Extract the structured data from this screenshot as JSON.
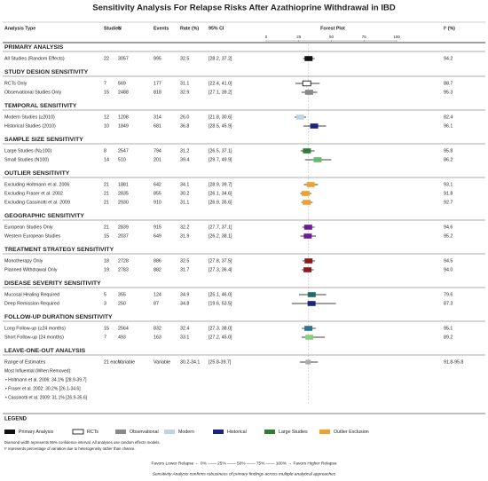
{
  "chart_data": {
    "type": "forest",
    "title": "Sensitivity Analysis For Relapse Risks After Azathioprine Withdrawal in IBD",
    "columns": [
      "Analysis Type",
      "Studies",
      "N",
      "Events",
      "Rate (%)",
      "95% CI",
      "Forest Plot",
      "I² (%)"
    ],
    "xlim": [
      0,
      100
    ],
    "xticks": [
      0,
      25,
      50,
      75,
      100
    ],
    "sections": [
      {
        "title": "PRIMARY ANALYSIS",
        "rows": [
          {
            "label": "All Studies (Random Effects)",
            "studies": 22,
            "n": 3057,
            "events": 995,
            "rate": 32.5,
            "ci_label": "[28.2, 37.2]",
            "ci": [
              28.2,
              37.2
            ],
            "i2": 94.2,
            "color": "#111111"
          }
        ]
      },
      {
        "title": "STUDY DESIGN SENSITIVITY",
        "rows": [
          {
            "label": "RCTs Only",
            "studies": 7,
            "n": 569,
            "events": 177,
            "rate": 31.1,
            "ci_label": "[22.4, 41.0]",
            "ci": [
              22.4,
              41.0
            ],
            "i2": 88.7,
            "color": "#ffffff"
          },
          {
            "label": "Observational Studies Only",
            "studies": 15,
            "n": 2488,
            "events": 818,
            "rate": 32.9,
            "ci_label": "[27.1, 39.2]",
            "ci": [
              27.1,
              39.2
            ],
            "i2": 95.3,
            "color": "#888888"
          }
        ]
      },
      {
        "title": "TEMPORAL SENSITIVITY",
        "rows": [
          {
            "label": "Modern Studies (≥2010)",
            "studies": 12,
            "n": 1208,
            "events": 314,
            "rate": 26.0,
            "rate_label": "26.0",
            "ci_label": "[21.8, 30.6]",
            "ci": [
              21.8,
              30.6
            ],
            "i2": 82.4,
            "color": "#bcd4e6"
          },
          {
            "label": "Historical Studies (2010)",
            "studies": 10,
            "n": 1849,
            "events": 681,
            "rate": 36.8,
            "ci_label": "[28.5, 45.9]",
            "ci": [
              28.5,
              45.9
            ],
            "i2": 96.1,
            "color": "#1a237e"
          }
        ]
      },
      {
        "title": "SAMPLE SIZE SENSITIVITY",
        "rows": [
          {
            "label": "Large Studies (N≥100)",
            "studies": 8,
            "n": 2547,
            "events": 794,
            "rate": 31.2,
            "ci_label": "[26.5, 37.1]",
            "ci": [
              26.5,
              37.1
            ],
            "i2": 95.8,
            "color": "#2e7d32"
          },
          {
            "label": "Small Studies (N100)",
            "studies": 14,
            "n": 510,
            "events": 201,
            "rate": 39.4,
            "ci_label": "[29.7, 49.9]",
            "ci": [
              29.7,
              49.9
            ],
            "i2": 86.2,
            "color": "#66bb6a"
          }
        ]
      },
      {
        "title": "OUTLIER SENSITIVITY",
        "rows": [
          {
            "label": "Excluding Holtmann et al. 2006",
            "studies": 21,
            "n": 1881,
            "events": 642,
            "rate": 34.1,
            "ci_label": "[28.9, 39.7]",
            "ci": [
              28.9,
              39.7
            ],
            "i2": 93.1,
            "color": "#f0a030"
          },
          {
            "label": "Excluding Fraser et al. 2002",
            "studies": 21,
            "n": 2835,
            "events": 855,
            "rate": 30.2,
            "ci_label": "[26.1, 34.6]",
            "ci": [
              26.1,
              34.6
            ],
            "i2": 91.8,
            "color": "#f0a030"
          },
          {
            "label": "Excluding Cassinotti et al. 2009",
            "studies": 21,
            "n": 2930,
            "events": 910,
            "rate": 31.1,
            "ci_label": "[26.9, 35.6]",
            "ci": [
              26.9,
              35.6
            ],
            "i2": 92.7,
            "color": "#f0a030"
          }
        ]
      },
      {
        "title": "GEOGRAPHIC SENSITIVITY",
        "rows": [
          {
            "label": "European Studies Only",
            "studies": 21,
            "n": 2839,
            "events": 915,
            "rate": 32.2,
            "ci_label": "[27.7, 37.1]",
            "ci": [
              27.7,
              37.1
            ],
            "i2": 94.6,
            "color": "#6a1b9a"
          },
          {
            "label": "Western European Studies",
            "studies": 15,
            "n": 2037,
            "events": 649,
            "rate": 31.9,
            "ci_label": "[26.2, 38.1]",
            "ci": [
              26.2,
              38.1
            ],
            "i2": 95.2,
            "color": "#6a1b9a"
          }
        ]
      },
      {
        "title": "TREATMENT STRATEGY SENSITIVITY",
        "rows": [
          {
            "label": "Monotherapy Only",
            "studies": 18,
            "n": 2728,
            "events": 886,
            "rate": 32.5,
            "ci_label": "[27.8, 37.5]",
            "ci": [
              27.8,
              37.5
            ],
            "i2": 94.5,
            "color": "#8b1a1a"
          },
          {
            "label": "Planned Withdrawal Only",
            "studies": 19,
            "n": 2783,
            "events": 882,
            "rate": 31.7,
            "ci_label": "[27.3, 36.4]",
            "ci": [
              27.3,
              36.4
            ],
            "i2": 94.0,
            "i2_label": "94.0",
            "color": "#8b1a1a"
          }
        ]
      },
      {
        "title": "DISEASE SEVERITY SENSITIVITY",
        "rows": [
          {
            "label": "Mucosal Healing Required",
            "studies": 5,
            "n": 355,
            "events": 124,
            "rate": 34.9,
            "ci_label": "[25.1, 46.0]",
            "ci": [
              25.1,
              46.0
            ],
            "i2": 79.6,
            "color": "#1a6b6b"
          },
          {
            "label": "Deep Remission Required",
            "studies": 3,
            "n": 250,
            "events": 87,
            "rate": 34.8,
            "ci_label": "[19.6, 53.5]",
            "ci": [
              19.6,
              53.5
            ],
            "i2": 87.3,
            "color": "#1a237e"
          }
        ]
      },
      {
        "title": "FOLLOW-UP DURATION SENSITIVITY",
        "rows": [
          {
            "label": "Long Follow-up (≥24 months)",
            "studies": 15,
            "n": 2564,
            "events": 832,
            "rate": 32.4,
            "ci_label": "[27.3, 38.0]",
            "ci": [
              27.3,
              38.0
            ],
            "i2": 95.1,
            "color": "#2f6f8f"
          },
          {
            "label": "Short Follow-up (24 months)",
            "studies": 7,
            "n": 493,
            "events": 163,
            "rate": 33.1,
            "ci_label": "[27.2, 45.0]",
            "ci": [
              27.2,
              45.0
            ],
            "i2": 89.2,
            "color": "#8bd17c"
          }
        ]
      },
      {
        "title": "LEAVE-ONE-OUT ANALYSIS",
        "rows": [
          {
            "label": "Range of Estimates",
            "studies": "21 each",
            "n": "Variable",
            "events": "Variable",
            "rate_label": "30.2-34.1",
            "estimate_range": [
              30.2,
              34.1
            ],
            "ci_label": "[25.8-39.7]",
            "ci": [
              25.8,
              39.7
            ],
            "i2_label": "91.8-95.8",
            "color": "#aaaaaa"
          }
        ],
        "notes": [
          "Most Influential (When Removed):",
          "• Holtmann et al. 2006: 34.1% [28.9-39.7]",
          "• Fraser et al. 2002: 30.2% [26.1-34.6]",
          "• Cassinotti et al. 2009: 31.1% [26.9-35.6]"
        ]
      }
    ],
    "legend_title": "LEGEND",
    "legend": [
      {
        "name": "Primary Analysis",
        "color": "#111111"
      },
      {
        "name": "RCTs",
        "color": "#ffffff"
      },
      {
        "name": "Observational",
        "color": "#888888"
      },
      {
        "name": "Modern",
        "color": "#bcd4e6"
      },
      {
        "name": "Historical",
        "color": "#1a237e"
      },
      {
        "name": "Large Studies",
        "color": "#2e7d32"
      },
      {
        "name": "Outlier Exclusion",
        "color": "#f0a030"
      }
    ],
    "footnotes": [
      "Diamond width represents 95% confidence interval. All analyses use random effects models.",
      "I² represents percentage of variation due to heterogeneity rather than chance."
    ],
    "axis_caption": "Favors Lower Relapse ← 0% —— 25% —— 50% —— 75% —— 100% → Favors Higher Relapse",
    "caption": "Sensitivity Analysis confirms robustness of primary findings across multiple analytical approaches"
  }
}
